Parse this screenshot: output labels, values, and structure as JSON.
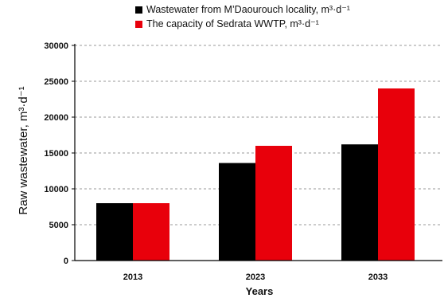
{
  "chart_data": {
    "type": "bar",
    "categories": [
      "2013",
      "2023",
      "2033"
    ],
    "series": [
      {
        "name": "Wastewater from M’Daourouch locality, m³·d⁻¹",
        "color": "#000000",
        "values": [
          8000,
          13600,
          16200
        ]
      },
      {
        "name": "The capacity of Sedrata WWTP, m³·d⁻¹",
        "color": "#e8000b",
        "values": [
          8000,
          16000,
          24000
        ]
      }
    ],
    "xlabel": "Years",
    "ylabel": "Raw wastewater, m³·d⁻¹",
    "ylim": [
      0,
      30000
    ],
    "yticks": [
      0,
      5000,
      10000,
      15000,
      20000,
      25000,
      30000
    ],
    "grid": "horizontal dashed",
    "legend_position": "top"
  }
}
